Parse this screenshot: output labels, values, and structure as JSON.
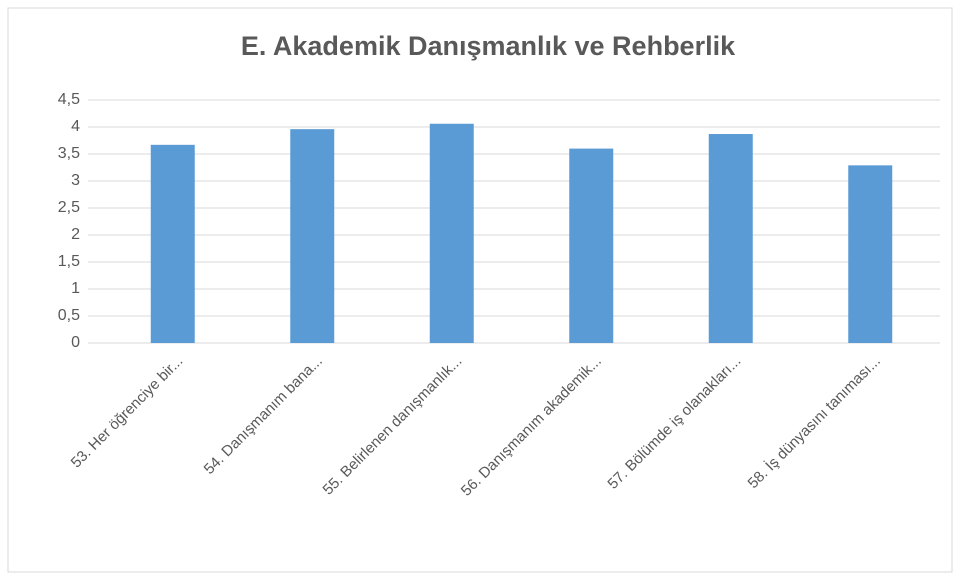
{
  "chart_data": {
    "type": "bar",
    "title": "E. Akademik Danışmanlık ve Rehberlik",
    "categories": [
      "53. Her öğrenciye bir...",
      "54. Danışmanım bana...",
      "55. Belirlenen danışmanlık...",
      "56. Danışmanım akademik...",
      "57. Bölümde iş olanakları...",
      "58. İş dünyasını tanıması..."
    ],
    "values": [
      3.67,
      3.96,
      4.06,
      3.6,
      3.87,
      3.29
    ],
    "color": "#5b9bd5",
    "ylim": [
      0,
      4.5
    ],
    "yticks": [
      0,
      {
        "value": 0.5,
        "label": "0,5"
      },
      1,
      {
        "value": 1.5,
        "label": "1,5"
      },
      2,
      {
        "value": 2.5,
        "label": "2,5"
      },
      3,
      {
        "value": 3.5,
        "label": "3,5"
      },
      4,
      {
        "value": 4.5,
        "label": "4,5"
      }
    ],
    "grid": true
  }
}
